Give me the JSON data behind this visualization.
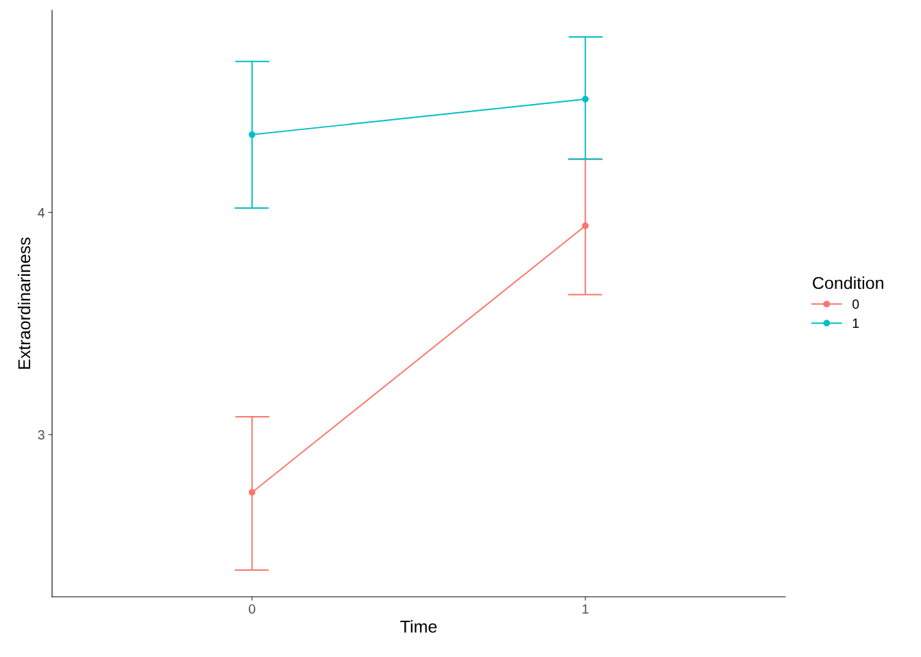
{
  "chart_data": {
    "type": "line",
    "xlabel": "Time",
    "ylabel": "Extraordinariness",
    "legend_title": "Condition",
    "x": [
      0,
      1
    ],
    "xlim": [
      -0.6,
      1.6
    ],
    "xticks": [
      0,
      1
    ],
    "ylim": [
      2.27,
      4.91
    ],
    "yticks": [
      3,
      4
    ],
    "series": [
      {
        "name": "0",
        "color": "#f8766d",
        "values": [
          2.74,
          3.94
        ],
        "errors": [
          [
            2.39,
            3.08
          ],
          [
            3.63,
            4.24
          ]
        ]
      },
      {
        "name": "1",
        "color": "#00bfc4",
        "values": [
          4.35,
          4.51
        ],
        "errors": [
          [
            4.02,
            4.68
          ],
          [
            4.24,
            4.79
          ]
        ]
      }
    ],
    "marker": "circle",
    "line_style": "solid",
    "grid": false,
    "legend": "right"
  }
}
